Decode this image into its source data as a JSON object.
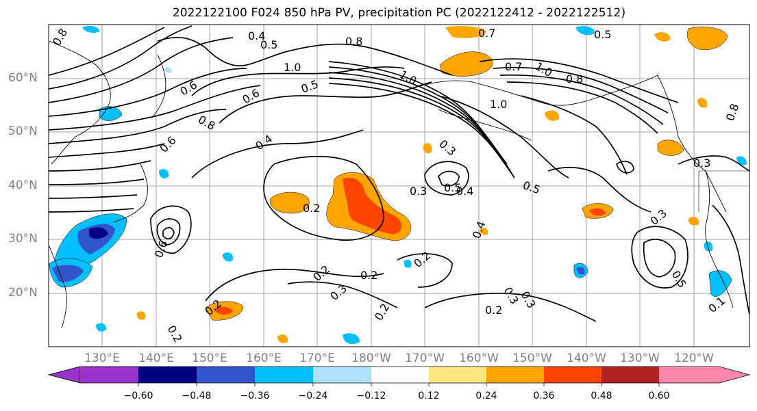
{
  "title": "2022122100 F024 850 hPa PV, precipitation PC (2022122412 - 2022122512)",
  "latitude_labels": [
    "60°N",
    "50°N",
    "40°N",
    "30°N",
    "20°N"
  ],
  "longitude_labels": [
    "130°E",
    "140°E",
    "150°E",
    "160°E",
    "170°E",
    "180°W",
    "170°W",
    "160°W",
    "150°W",
    "140°W",
    "130°W",
    "120°W"
  ],
  "contour_labels": [
    "0.8",
    "0.4",
    "0.5",
    "0.6",
    "0.7",
    "0.5",
    "1.0",
    "0.8",
    "1.0",
    "1.0",
    "0.7",
    "0.8",
    "1.0",
    "0.6",
    "0.5",
    "0.8",
    "0.6",
    "0.4",
    "0.3",
    "0.3",
    "0.5",
    "0.4",
    "0.2",
    "0.2",
    "0.2",
    "0.2",
    "0.3",
    "0.3",
    "0.2",
    "0.3",
    "0.5",
    "0.3",
    "0.2",
    "0.2",
    "0.2",
    "0.4",
    "0.5",
    "0.6",
    "0.3",
    "0.8",
    "0.1"
  ],
  "colorbar": {
    "ticks": [
      "−0.60",
      "−0.48",
      "−0.36",
      "−0.24",
      "−0.12",
      "0.12",
      "0.24",
      "0.36",
      "0.48",
      "0.60"
    ],
    "colors": [
      "#9933cc",
      "#000080",
      "#3355cc",
      "#00bfff",
      "#b0e0ff",
      "#ffffff",
      "#ffe680",
      "#ffa500",
      "#ff4500",
      "#b22222",
      "#ff88aa"
    ]
  },
  "legend_colors": {
    "contour": "#000000",
    "coast": "#000000",
    "grid": "#a0a0a0",
    "axis_text": "#808080"
  }
}
